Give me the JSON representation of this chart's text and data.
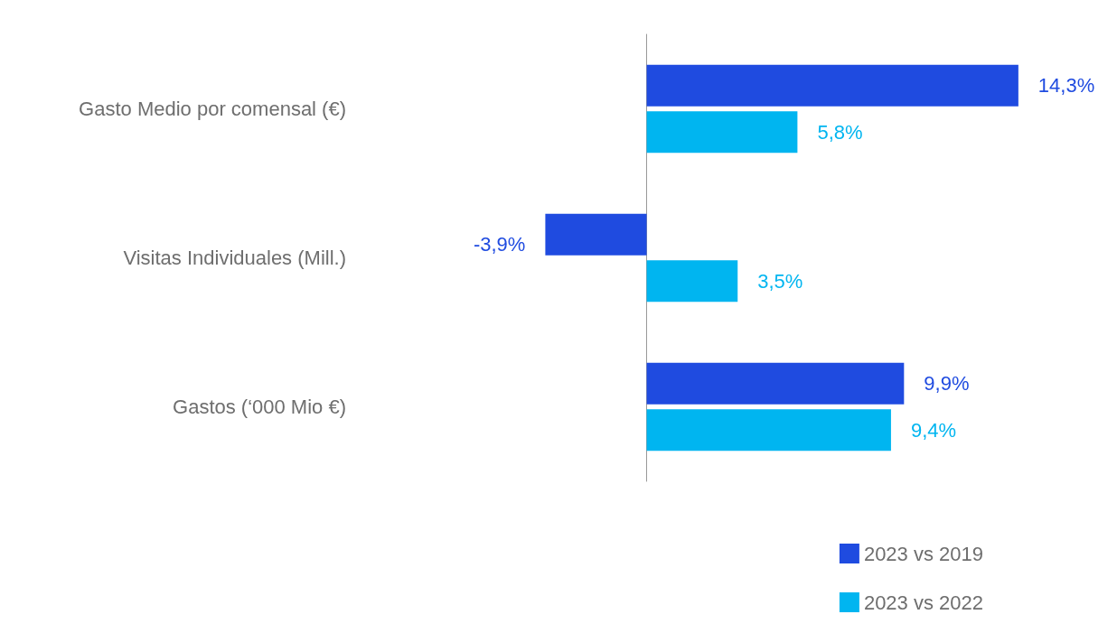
{
  "chart_data": {
    "type": "bar",
    "orientation": "horizontal",
    "categories": [
      "Gasto Medio por comensal (€)",
      "Visitas Individuales (Mill.)",
      "Gastos (‘000 Mio €)"
    ],
    "series": [
      {
        "name": "2023 vs 2019",
        "color": "#1f4be0",
        "values": [
          14.3,
          -3.9,
          9.9
        ],
        "value_labels": [
          "14,3%",
          "-3,9%",
          "9,9%"
        ]
      },
      {
        "name": "2023 vs 2022",
        "color": "#00b5f0",
        "values": [
          5.8,
          3.5,
          9.4
        ],
        "value_labels": [
          "5,8%",
          "3,5%",
          "9,4%"
        ]
      }
    ],
    "tick_labels": "y",
    "legend": "bottom right"
  }
}
